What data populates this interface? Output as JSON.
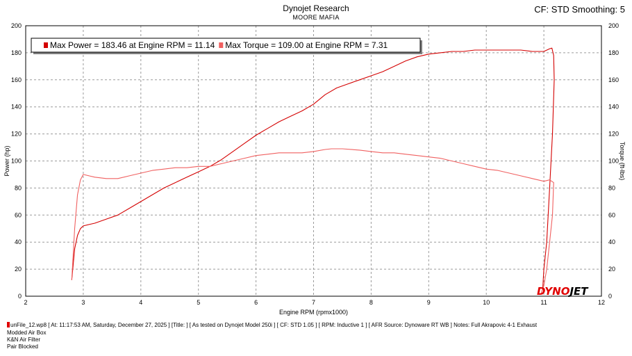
{
  "header": {
    "title": "Dynojet Research",
    "subtitle": "MOORE MAFIA",
    "cf_label": "CF: STD Smoothing: 5"
  },
  "logo": {
    "part1": "DYNO",
    "part2": "JET",
    "color_red": "#e00000",
    "color_black": "#000000"
  },
  "footer": {
    "run_info": "unFile_12.wp8 [ At: 11:17:53 AM, Saturday, December 27, 2025 ] [Title: ]  [ As tested on Dynojet Model 250i ] [ CF: STD 1.05 ] [ RPM: Inductive 1 ] [ AFR Source: Dynoware RT WB ] Notes: Full Akrapovic 4-1 Exhaust",
    "notes": [
      "Modded Air Box",
      "K&N Air Filter",
      "Pair Blocked"
    ]
  },
  "chart_data": {
    "type": "line",
    "xlabel": "Engine RPM (rpmx1000)",
    "ylabel_left": "Power (hp)",
    "ylabel_right": "Torque (ft-lbs)",
    "xlim": [
      2,
      12
    ],
    "ylim": [
      0,
      200
    ],
    "x_ticks": [
      2,
      3,
      4,
      5,
      6,
      7,
      8,
      9,
      10,
      11,
      12
    ],
    "y_ticks": [
      0,
      20,
      40,
      60,
      80,
      100,
      120,
      140,
      160,
      180,
      200
    ],
    "grid": true,
    "legend_position": "top-left",
    "legend": [
      {
        "label": "Max Power = 183.46 at Engine RPM = 11.14",
        "color": "#d40000"
      },
      {
        "label": "Max Torque = 109.00 at Engine RPM = 7.31",
        "color": "#f06060"
      }
    ],
    "series": [
      {
        "name": "Power",
        "color": "#d40000",
        "points": [
          [
            2.8,
            12
          ],
          [
            2.85,
            35
          ],
          [
            2.9,
            45
          ],
          [
            2.95,
            50
          ],
          [
            3.0,
            52
          ],
          [
            3.1,
            53
          ],
          [
            3.2,
            54
          ],
          [
            3.4,
            57
          ],
          [
            3.6,
            60
          ],
          [
            3.8,
            65
          ],
          [
            4.0,
            70
          ],
          [
            4.2,
            75
          ],
          [
            4.4,
            80
          ],
          [
            4.6,
            84
          ],
          [
            4.8,
            88
          ],
          [
            5.0,
            92
          ],
          [
            5.2,
            96
          ],
          [
            5.4,
            101
          ],
          [
            5.6,
            107
          ],
          [
            5.8,
            113
          ],
          [
            6.0,
            119
          ],
          [
            6.2,
            124
          ],
          [
            6.4,
            129
          ],
          [
            6.6,
            133
          ],
          [
            6.8,
            137
          ],
          [
            7.0,
            142
          ],
          [
            7.2,
            149
          ],
          [
            7.4,
            154
          ],
          [
            7.6,
            157
          ],
          [
            7.8,
            160
          ],
          [
            8.0,
            163
          ],
          [
            8.2,
            166
          ],
          [
            8.4,
            170
          ],
          [
            8.6,
            174
          ],
          [
            8.8,
            177
          ],
          [
            9.0,
            179
          ],
          [
            9.2,
            180
          ],
          [
            9.4,
            181
          ],
          [
            9.6,
            181
          ],
          [
            9.8,
            182
          ],
          [
            10.0,
            182
          ],
          [
            10.2,
            182
          ],
          [
            10.4,
            182
          ],
          [
            10.6,
            182
          ],
          [
            10.8,
            181
          ],
          [
            11.0,
            181
          ],
          [
            11.1,
            183
          ],
          [
            11.14,
            183.46
          ],
          [
            11.17,
            178
          ],
          [
            11.18,
            160
          ],
          [
            11.15,
            120
          ],
          [
            11.1,
            80
          ],
          [
            11.05,
            40
          ],
          [
            11.0,
            20
          ],
          [
            10.98,
            5
          ]
        ]
      },
      {
        "name": "Torque",
        "color": "#f06060",
        "points": [
          [
            2.8,
            12
          ],
          [
            2.85,
            50
          ],
          [
            2.9,
            75
          ],
          [
            2.95,
            86
          ],
          [
            3.0,
            90
          ],
          [
            3.1,
            89
          ],
          [
            3.2,
            88
          ],
          [
            3.4,
            87
          ],
          [
            3.6,
            87
          ],
          [
            3.8,
            89
          ],
          [
            4.0,
            91
          ],
          [
            4.2,
            93
          ],
          [
            4.4,
            94
          ],
          [
            4.6,
            95
          ],
          [
            4.8,
            95
          ],
          [
            5.0,
            96
          ],
          [
            5.2,
            96
          ],
          [
            5.4,
            98
          ],
          [
            5.6,
            100
          ],
          [
            5.8,
            102
          ],
          [
            6.0,
            104
          ],
          [
            6.2,
            105
          ],
          [
            6.4,
            106
          ],
          [
            6.6,
            106
          ],
          [
            6.8,
            106
          ],
          [
            7.0,
            107
          ],
          [
            7.2,
            108.5
          ],
          [
            7.31,
            109
          ],
          [
            7.5,
            109
          ],
          [
            7.8,
            108
          ],
          [
            8.0,
            107
          ],
          [
            8.2,
            106
          ],
          [
            8.4,
            106
          ],
          [
            8.6,
            105
          ],
          [
            8.8,
            104
          ],
          [
            9.0,
            103
          ],
          [
            9.2,
            102
          ],
          [
            9.4,
            100
          ],
          [
            9.6,
            98
          ],
          [
            9.8,
            96
          ],
          [
            10.0,
            94
          ],
          [
            10.2,
            93
          ],
          [
            10.4,
            91
          ],
          [
            10.6,
            89
          ],
          [
            10.8,
            87
          ],
          [
            11.0,
            85
          ],
          [
            11.1,
            86
          ],
          [
            11.17,
            84
          ],
          [
            11.15,
            60
          ],
          [
            11.1,
            40
          ],
          [
            11.05,
            20
          ],
          [
            11.0,
            8
          ],
          [
            10.95,
            2
          ]
        ]
      }
    ]
  }
}
